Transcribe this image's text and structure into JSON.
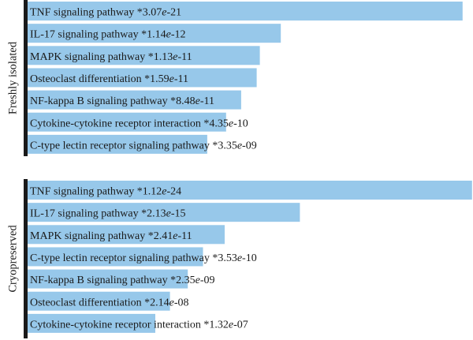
{
  "chart_data": [
    {
      "type": "bar",
      "orientation": "horizontal",
      "group_label": "Freshly isolated",
      "colors": {
        "bar": "#97c8ea",
        "axis": "#1a1a1a"
      },
      "xlim": [
        0,
        21
      ],
      "categories": [
        {
          "pathway": "TNF signaling pathway",
          "pvalue": "3.07e-21",
          "value": 20.51
        },
        {
          "pathway": "IL-17 signaling pathway",
          "pvalue": "1.14e-12",
          "value": 11.94
        },
        {
          "pathway": "MAPK signaling pathway",
          "pvalue": "1.13e-11",
          "value": 10.95
        },
        {
          "pathway": "Osteoclast differentiation",
          "pvalue": "1.59e-11",
          "value": 10.8
        },
        {
          "pathway": "NF-kappa B signaling pathway",
          "pvalue": "8.48e-11",
          "value": 10.07
        },
        {
          "pathway": "Cytokine-cytokine receptor interaction",
          "pvalue": "4.35e-10",
          "value": 9.36
        },
        {
          "pathway": "C-type lectin receptor signaling pathway",
          "pvalue": "3.35e-09",
          "value": 8.47
        }
      ]
    },
    {
      "type": "bar",
      "orientation": "horizontal",
      "group_label": "Cryopreserved",
      "colors": {
        "bar": "#97c8ea",
        "axis": "#1a1a1a"
      },
      "xlim": [
        0,
        24
      ],
      "categories": [
        {
          "pathway": "TNF signaling pathway",
          "pvalue": "1.12e-24",
          "value": 23.95
        },
        {
          "pathway": "IL-17 signaling pathway",
          "pvalue": "2.13e-15",
          "value": 14.67
        },
        {
          "pathway": "MAPK signaling pathway",
          "pvalue": "2.41e-11",
          "value": 10.62
        },
        {
          "pathway": "C-type lectin receptor signaling pathway",
          "pvalue": "3.53e-10",
          "value": 9.45
        },
        {
          "pathway": "NF-kappa B signaling pathway",
          "pvalue": "2.35e-09",
          "value": 8.63
        },
        {
          "pathway": "Osteoclast differentiation",
          "pvalue": "2.14e-08",
          "value": 7.67
        },
        {
          "pathway": "Cytokine-cytokine receptor interaction",
          "pvalue": "1.32e-07",
          "value": 6.88
        }
      ]
    }
  ]
}
